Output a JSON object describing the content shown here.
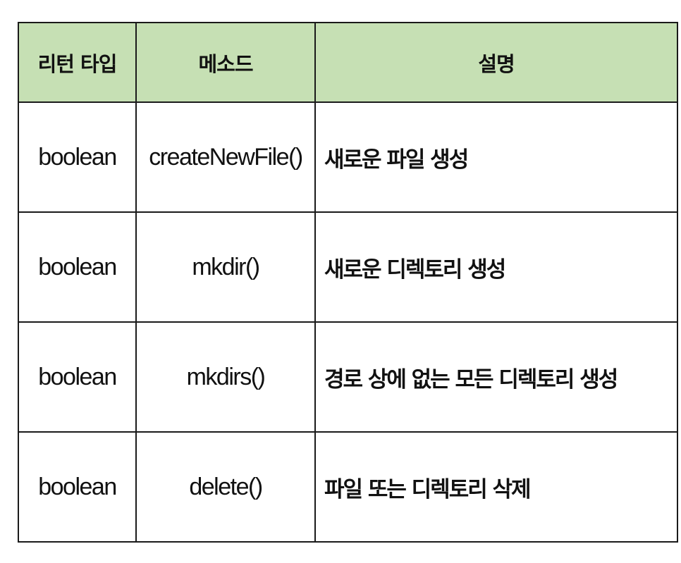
{
  "table": {
    "headers": {
      "return_type": "리턴 타입",
      "method": "메소드",
      "description": "설명"
    },
    "rows": [
      {
        "return_type": "boolean",
        "method": "createNewFile()",
        "description": "새로운 파일 생성"
      },
      {
        "return_type": "boolean",
        "method": "mkdir()",
        "description": "새로운 디렉토리 생성"
      },
      {
        "return_type": "boolean",
        "method": "mkdirs()",
        "description": "경로 상에 없는 모든 디렉토리 생성"
      },
      {
        "return_type": "boolean",
        "method": "delete()",
        "description": "파일 또는 디렉토리 삭제"
      }
    ],
    "colors": {
      "header_background": "#c6e0b4",
      "border": "#1a1a1a"
    }
  }
}
